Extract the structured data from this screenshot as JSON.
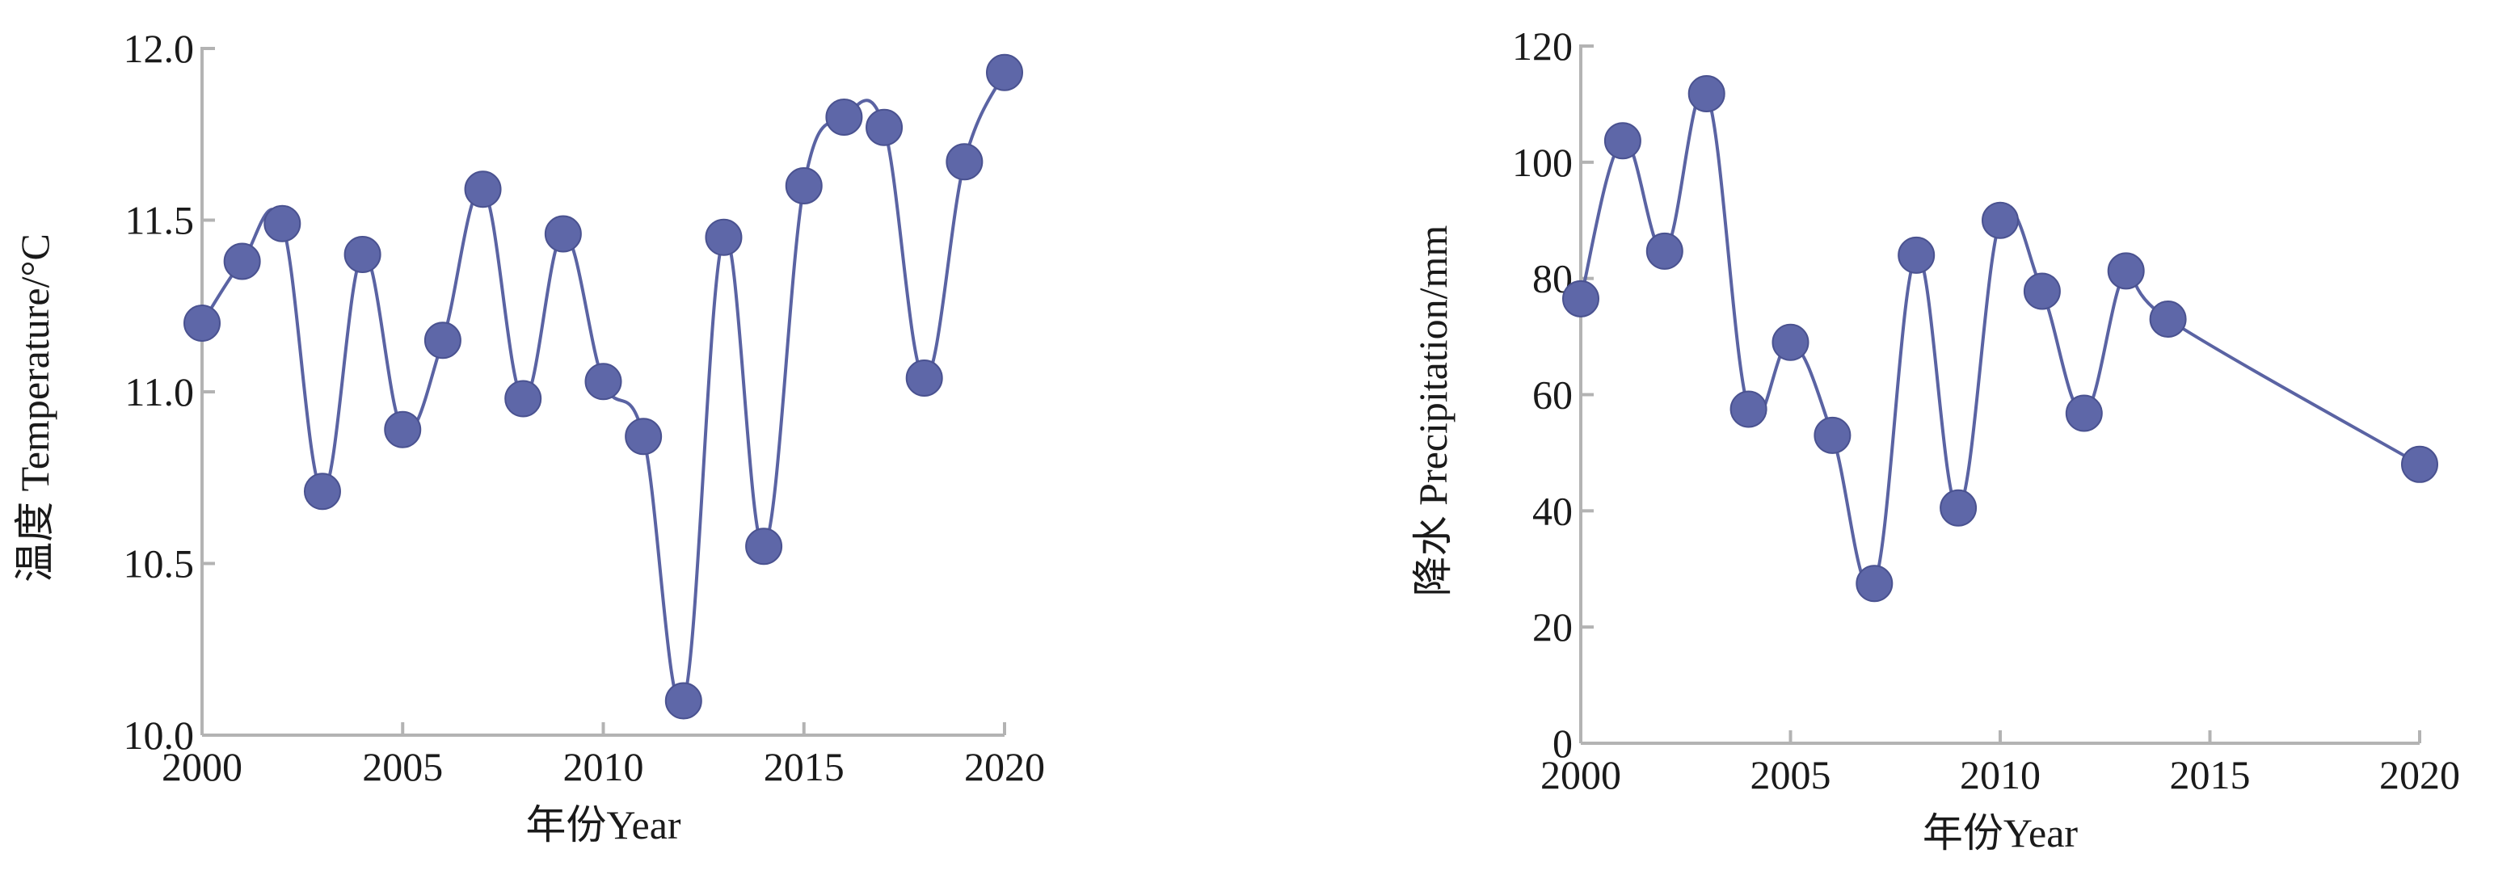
{
  "colors": {
    "series": "#5a63a3",
    "point": "#5e67a8",
    "axis": "#b3b3b3",
    "text": "#1a1a1a"
  },
  "chart_data": [
    {
      "type": "line",
      "xlabel": "年份Year",
      "ylabel": "温度 Temperature/°C",
      "xlim": [
        2000,
        2020
      ],
      "ylim": [
        10.0,
        12.0
      ],
      "xticks": [
        2000,
        2005,
        2010,
        2015,
        2020
      ],
      "xtick_labels": [
        "2000",
        "2005",
        "2010",
        "2015",
        "2020"
      ],
      "yticks": [
        10.0,
        10.5,
        11.0,
        11.5,
        12.0
      ],
      "ytick_labels": [
        "10.0",
        "10.5",
        "11.0",
        "11.5",
        "12.0"
      ],
      "grid": false,
      "smooth": true,
      "x": [
        2000,
        2001,
        2002,
        2003,
        2004,
        2005,
        2006,
        2007,
        2008,
        2009,
        2010,
        2011,
        2012,
        2013,
        2014,
        2015,
        2016,
        2017,
        2018,
        2019,
        2020
      ],
      "y": [
        11.2,
        11.38,
        11.49,
        10.71,
        11.4,
        10.89,
        11.15,
        11.59,
        10.98,
        11.46,
        11.03,
        10.87,
        10.1,
        11.45,
        10.55,
        11.6,
        11.8,
        11.77,
        11.04,
        11.67,
        11.93
      ]
    },
    {
      "type": "line",
      "xlabel": "年份Year",
      "ylabel": "降水 Precipitation/mm",
      "xlim": [
        2000,
        2020
      ],
      "ylim": [
        0,
        120
      ],
      "xticks": [
        2000,
        2005,
        2010,
        2015,
        2020
      ],
      "xtick_labels": [
        "2000",
        "2005",
        "2010",
        "2015",
        "2020"
      ],
      "yticks": [
        0,
        20,
        40,
        60,
        80,
        100,
        120
      ],
      "ytick_labels": [
        "0",
        "20",
        "40",
        "60",
        "80",
        "100",
        "120"
      ],
      "grid": false,
      "smooth": true,
      "x": [
        2000,
        2001,
        2002,
        2003,
        2004,
        2005,
        2006,
        2007,
        2008,
        2009,
        2010,
        2011,
        2012,
        2013,
        2014,
        2020
      ],
      "y": [
        76.5,
        103.7,
        84.7,
        111.8,
        57.5,
        69,
        53,
        27.5,
        84,
        40.5,
        90,
        77.8,
        56.8,
        81.3,
        73,
        48
      ]
    }
  ]
}
